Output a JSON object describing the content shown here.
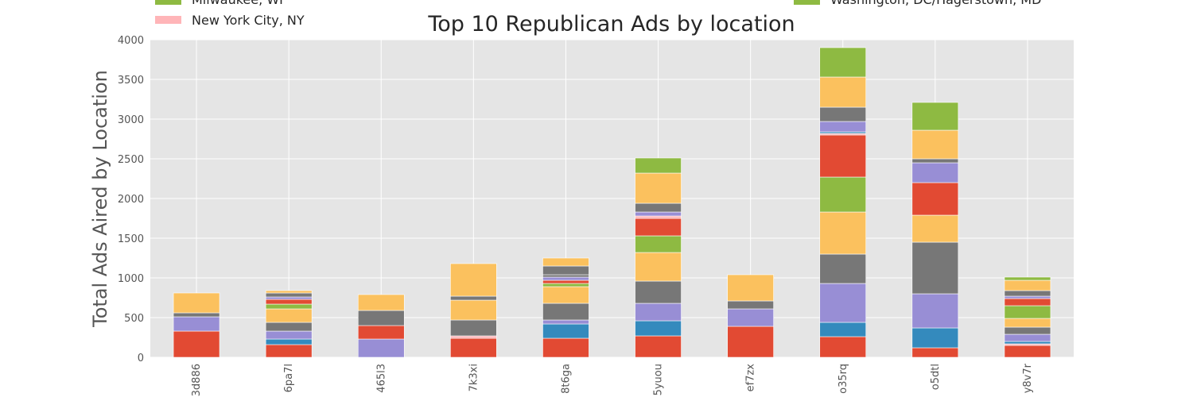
{
  "colors": {
    "background": "#ffffff",
    "plot_background": "#e5e5e5",
    "grid": "#ffffff",
    "palette": [
      "#e24a33",
      "#348abd",
      "#988ed5",
      "#777777",
      "#fbc15e",
      "#8eba42",
      "#ffb5b8"
    ]
  },
  "legend": {
    "placement": "top (partially cropped)",
    "items": [
      {
        "label": "Milwaukee, WI",
        "color": "#8eba42"
      },
      {
        "label": "New York City, NY",
        "color": "#ffb5b8"
      },
      {
        "label": "Washington, DC/Hagerstown, MD",
        "color": "#8eba42"
      }
    ]
  },
  "chart_data": {
    "type": "bar",
    "stacked": true,
    "title": "Top 10 Republican Ads by location",
    "xlabel": "",
    "ylabel": "Total Ads Aired by Location",
    "ylim": [
      0,
      4000
    ],
    "yticks": [
      0,
      500,
      1000,
      1500,
      2000,
      2500,
      3000,
      3500,
      4000
    ],
    "grid": true,
    "categories": [
      "3d886",
      "6pa7l",
      "465l3",
      "7k3xi",
      "8t6ga",
      "5yuou",
      "ef7zx",
      "o35rq",
      "o5dtl",
      "y8v7r"
    ],
    "stacks": [
      [
        {
          "value": 330,
          "color": "#e24a33"
        },
        {
          "value": 180,
          "color": "#988ed5"
        },
        {
          "value": 50,
          "color": "#777777"
        },
        {
          "value": 250,
          "color": "#fbc15e"
        }
      ],
      [
        {
          "value": 160,
          "color": "#e24a33"
        },
        {
          "value": 70,
          "color": "#348abd"
        },
        {
          "value": 100,
          "color": "#988ed5"
        },
        {
          "value": 110,
          "color": "#777777"
        },
        {
          "value": 170,
          "color": "#fbc15e"
        },
        {
          "value": 60,
          "color": "#8eba42"
        },
        {
          "value": 60,
          "color": "#e24a33"
        },
        {
          "value": 30,
          "color": "#988ed5"
        },
        {
          "value": 50,
          "color": "#777777"
        },
        {
          "value": 30,
          "color": "#fbc15e"
        }
      ],
      [
        {
          "value": 230,
          "color": "#988ed5"
        },
        {
          "value": 170,
          "color": "#e24a33"
        },
        {
          "value": 190,
          "color": "#777777"
        },
        {
          "value": 200,
          "color": "#fbc15e"
        }
      ],
      [
        {
          "value": 240,
          "color": "#e24a33"
        },
        {
          "value": 30,
          "color": "#ffb5b8"
        },
        {
          "value": 200,
          "color": "#777777"
        },
        {
          "value": 250,
          "color": "#fbc15e"
        },
        {
          "value": 50,
          "color": "#777777"
        },
        {
          "value": 410,
          "color": "#fbc15e"
        }
      ],
      [
        {
          "value": 240,
          "color": "#e24a33"
        },
        {
          "value": 180,
          "color": "#348abd"
        },
        {
          "value": 50,
          "color": "#988ed5"
        },
        {
          "value": 210,
          "color": "#777777"
        },
        {
          "value": 210,
          "color": "#fbc15e"
        },
        {
          "value": 40,
          "color": "#8eba42"
        },
        {
          "value": 40,
          "color": "#e24a33"
        },
        {
          "value": 40,
          "color": "#988ed5"
        },
        {
          "value": 30,
          "color": "#777777"
        },
        {
          "value": 110,
          "color": "#777777"
        },
        {
          "value": 100,
          "color": "#fbc15e"
        }
      ],
      [
        {
          "value": 270,
          "color": "#e24a33"
        },
        {
          "value": 190,
          "color": "#348abd"
        },
        {
          "value": 220,
          "color": "#988ed5"
        },
        {
          "value": 280,
          "color": "#777777"
        },
        {
          "value": 360,
          "color": "#fbc15e"
        },
        {
          "value": 210,
          "color": "#8eba42"
        },
        {
          "value": 220,
          "color": "#e24a33"
        },
        {
          "value": 30,
          "color": "#ffb5b8"
        },
        {
          "value": 50,
          "color": "#988ed5"
        },
        {
          "value": 110,
          "color": "#777777"
        },
        {
          "value": 380,
          "color": "#fbc15e"
        },
        {
          "value": 190,
          "color": "#8eba42"
        }
      ],
      [
        {
          "value": 390,
          "color": "#e24a33"
        },
        {
          "value": 220,
          "color": "#988ed5"
        },
        {
          "value": 100,
          "color": "#777777"
        },
        {
          "value": 330,
          "color": "#fbc15e"
        }
      ],
      [
        {
          "value": 260,
          "color": "#e24a33"
        },
        {
          "value": 180,
          "color": "#348abd"
        },
        {
          "value": 490,
          "color": "#988ed5"
        },
        {
          "value": 370,
          "color": "#777777"
        },
        {
          "value": 530,
          "color": "#fbc15e"
        },
        {
          "value": 440,
          "color": "#8eba42"
        },
        {
          "value": 530,
          "color": "#e24a33"
        },
        {
          "value": 20,
          "color": "#ffb5b8"
        },
        {
          "value": 20,
          "color": "#348abd"
        },
        {
          "value": 130,
          "color": "#988ed5"
        },
        {
          "value": 180,
          "color": "#777777"
        },
        {
          "value": 380,
          "color": "#fbc15e"
        },
        {
          "value": 370,
          "color": "#8eba42"
        }
      ],
      [
        {
          "value": 120,
          "color": "#e24a33"
        },
        {
          "value": 250,
          "color": "#348abd"
        },
        {
          "value": 430,
          "color": "#988ed5"
        },
        {
          "value": 650,
          "color": "#777777"
        },
        {
          "value": 340,
          "color": "#fbc15e"
        },
        {
          "value": 410,
          "color": "#e24a33"
        },
        {
          "value": 250,
          "color": "#988ed5"
        },
        {
          "value": 50,
          "color": "#777777"
        },
        {
          "value": 360,
          "color": "#fbc15e"
        },
        {
          "value": 350,
          "color": "#8eba42"
        }
      ],
      [
        {
          "value": 150,
          "color": "#e24a33"
        },
        {
          "value": 20,
          "color": "#ffb5b8"
        },
        {
          "value": 30,
          "color": "#348abd"
        },
        {
          "value": 90,
          "color": "#988ed5"
        },
        {
          "value": 90,
          "color": "#777777"
        },
        {
          "value": 110,
          "color": "#fbc15e"
        },
        {
          "value": 160,
          "color": "#8eba42"
        },
        {
          "value": 90,
          "color": "#e24a33"
        },
        {
          "value": 30,
          "color": "#988ed5"
        },
        {
          "value": 70,
          "color": "#777777"
        },
        {
          "value": 130,
          "color": "#fbc15e"
        },
        {
          "value": 40,
          "color": "#8eba42"
        }
      ]
    ]
  }
}
